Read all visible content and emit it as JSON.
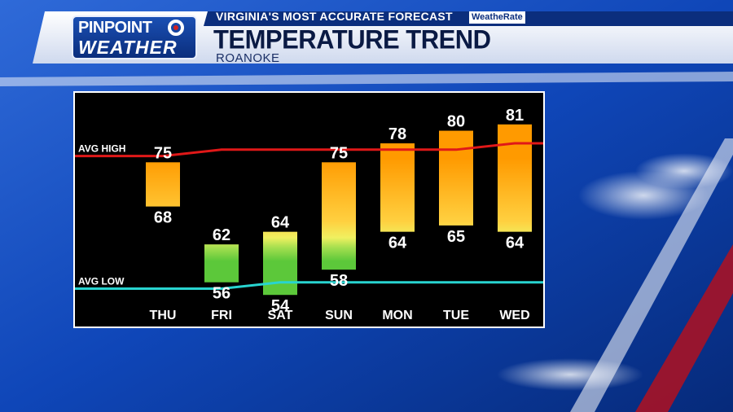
{
  "header": {
    "logo_line1": "PINPOINT",
    "logo_line2": "WEATHER",
    "tagline": "VIRGINIA'S MOST ACCURATE FORECAST",
    "badge": "WeatheRate",
    "title": "TEMPERATURE TREND",
    "subtitle": "ROANOKE"
  },
  "colors": {
    "avg_high_line": "#e01818",
    "avg_low_line": "#28d4d0",
    "warm_top": "#ff9a00",
    "warm_bottom": "#ffe060",
    "cool": "#5cc83a"
  },
  "chart_data": {
    "type": "bar",
    "categories": [
      "THU",
      "FRI",
      "SAT",
      "SUN",
      "MON",
      "TUE",
      "WED"
    ],
    "series": [
      {
        "name": "high",
        "values": [
          75,
          62,
          64,
          75,
          78,
          80,
          81
        ]
      },
      {
        "name": "low",
        "values": [
          68,
          56,
          54,
          58,
          64,
          65,
          64
        ]
      }
    ],
    "reference_lines": [
      {
        "label": "AVG HIGH",
        "values": [
          76,
          77,
          77,
          77,
          77,
          77,
          78
        ]
      },
      {
        "label": "AVG LOW",
        "values": [
          55,
          55,
          56,
          56,
          56,
          56,
          56
        ]
      }
    ],
    "ylim": [
      49,
      86
    ],
    "grid": false,
    "legend": "none"
  }
}
